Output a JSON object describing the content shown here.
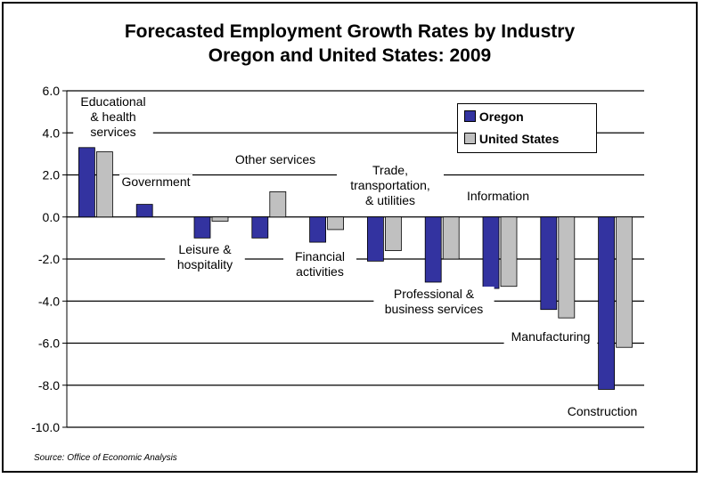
{
  "source": "Source: Office of Economic Analysis",
  "chart_data": {
    "type": "bar",
    "title": "Forecasted Employment Growth Rates by Industry",
    "subtitle": "Oregon and United States: 2009",
    "xlabel": "",
    "ylabel": "",
    "ylim": [
      -10,
      6
    ],
    "yticks": [
      "6.0",
      "4.0",
      "2.0",
      "0.0",
      "-2.0",
      "-4.0",
      "-6.0",
      "-8.0",
      "-10.0"
    ],
    "grid": true,
    "legend": "top-right",
    "categories": [
      "Educational & health services",
      "Government",
      "Leisure & hospitality",
      "Other services",
      "Financial activities",
      "Trade, transportation, & utilities",
      "Professional & business services",
      "Information",
      "Manufacturing",
      "Construction"
    ],
    "series": [
      {
        "name": "Oregon",
        "color": "#3333a0",
        "values": [
          3.3,
          0.6,
          -1.0,
          -1.0,
          -1.2,
          -2.1,
          -3.1,
          -3.4,
          -4.4,
          -8.2
        ]
      },
      {
        "name": "United States",
        "color": "#c0c0c0",
        "values": [
          3.1,
          0.0,
          -0.2,
          1.2,
          -0.6,
          -1.6,
          -2.0,
          -3.3,
          -4.8,
          -6.2
        ]
      }
    ]
  }
}
